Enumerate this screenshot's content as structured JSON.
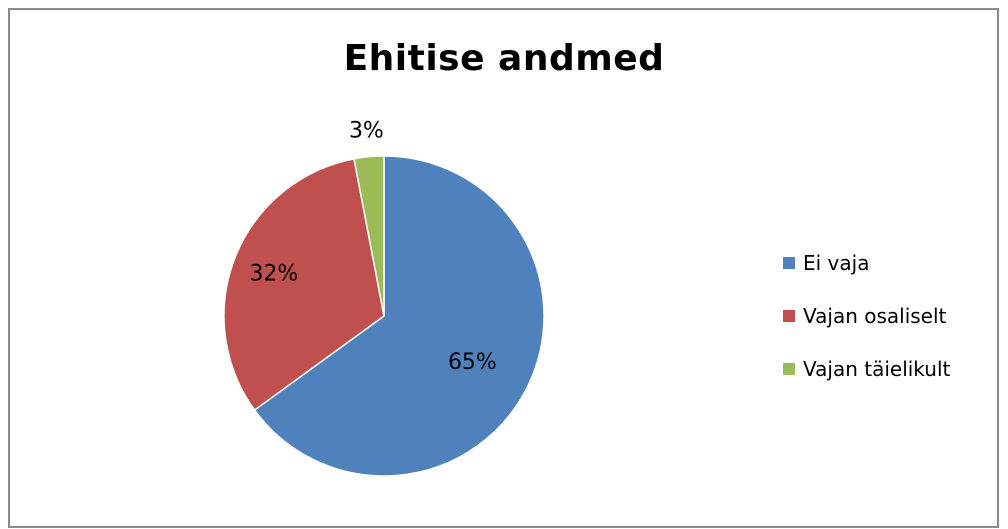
{
  "chart_data": {
    "type": "pie",
    "title": "Ehitise andmed",
    "categories": [
      "Ei vaja",
      "Vajan osaliselt",
      "Vajan täielikult"
    ],
    "values": [
      65,
      32,
      3
    ],
    "data_labels": [
      "65%",
      "32%",
      "3%"
    ],
    "colors": [
      "#4F81BD",
      "#C0504D",
      "#9BBB59"
    ],
    "legend_position": "right"
  }
}
